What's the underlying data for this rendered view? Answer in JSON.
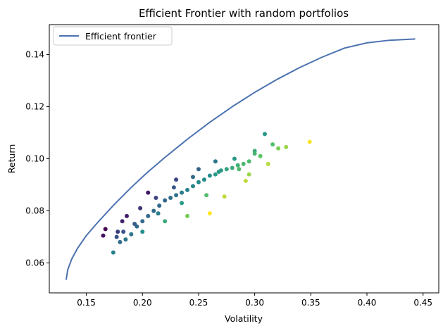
{
  "chart_data": {
    "type": "scatter",
    "title": "Efficient Frontier with random portfolios",
    "xlabel": "Volatility",
    "ylabel": "Return",
    "xlim": [
      0.117,
      0.464
    ],
    "ylim": [
      0.0485,
      0.1515
    ],
    "xticks": [
      {
        "value": 0.15,
        "label": "0.15"
      },
      {
        "value": 0.2,
        "label": "0.20"
      },
      {
        "value": 0.25,
        "label": "0.25"
      },
      {
        "value": 0.3,
        "label": "0.30"
      },
      {
        "value": 0.35,
        "label": "0.35"
      },
      {
        "value": 0.4,
        "label": "0.40"
      },
      {
        "value": 0.45,
        "label": "0.45"
      }
    ],
    "yticks": [
      {
        "value": 0.06,
        "label": "0.06"
      },
      {
        "value": 0.08,
        "label": "0.08"
      },
      {
        "value": 0.1,
        "label": "0.10"
      },
      {
        "value": 0.12,
        "label": "0.12"
      },
      {
        "value": 0.14,
        "label": "0.14"
      }
    ],
    "grid": false,
    "legend": {
      "position": "top-left",
      "entries": [
        "Efficient frontier"
      ]
    },
    "colormap": "viridis",
    "series": [
      {
        "name": "Efficient frontier",
        "kind": "line",
        "color": "#4c72b0",
        "x": [
          0.132,
          0.1335,
          0.137,
          0.142,
          0.15,
          0.16,
          0.175,
          0.19,
          0.205,
          0.22,
          0.24,
          0.26,
          0.28,
          0.3,
          0.32,
          0.34,
          0.36,
          0.38,
          0.4,
          0.42,
          0.443
        ],
        "y": [
          0.0535,
          0.0575,
          0.0615,
          0.0655,
          0.0705,
          0.0755,
          0.0825,
          0.089,
          0.095,
          0.1005,
          0.1075,
          0.114,
          0.12,
          0.1255,
          0.1305,
          0.135,
          0.139,
          0.1425,
          0.1445,
          0.1455,
          0.146
        ]
      },
      {
        "kind": "scatter",
        "description_values": "random portfolios (volatility, return); color varies from purple to yellow with increasing volatility relative to return",
        "x": [
          0.165,
          0.167,
          0.174,
          0.177,
          0.18,
          0.183,
          0.185,
          0.19,
          0.195,
          0.2,
          0.205,
          0.21,
          0.215,
          0.22,
          0.225,
          0.23,
          0.235,
          0.24,
          0.245,
          0.25,
          0.255,
          0.26,
          0.265,
          0.27,
          0.275,
          0.28,
          0.285,
          0.29,
          0.295,
          0.3,
          0.305,
          0.309,
          0.316,
          0.321,
          0.328,
          0.349,
          0.273,
          0.26,
          0.24,
          0.22,
          0.2,
          0.186,
          0.205,
          0.23,
          0.25,
          0.265,
          0.282,
          0.3,
          0.312,
          0.295,
          0.257,
          0.235,
          0.214,
          0.193,
          0.178,
          0.182,
          0.198,
          0.212,
          0.228,
          0.245,
          0.268,
          0.286,
          0.292
        ],
        "y": [
          0.0705,
          0.073,
          0.064,
          0.07,
          0.068,
          0.072,
          0.069,
          0.071,
          0.074,
          0.076,
          0.078,
          0.08,
          0.082,
          0.084,
          0.085,
          0.086,
          0.087,
          0.088,
          0.0895,
          0.091,
          0.092,
          0.0935,
          0.094,
          0.0955,
          0.096,
          0.0965,
          0.0975,
          0.098,
          0.099,
          0.103,
          0.101,
          0.1095,
          0.1055,
          0.104,
          0.1045,
          0.1065,
          0.0855,
          0.079,
          0.078,
          0.076,
          0.072,
          0.078,
          0.087,
          0.092,
          0.096,
          0.099,
          0.1,
          0.102,
          0.098,
          0.094,
          0.086,
          0.083,
          0.079,
          0.075,
          0.072,
          0.076,
          0.081,
          0.085,
          0.089,
          0.093,
          0.095,
          0.096,
          0.0915
        ]
      }
    ]
  }
}
